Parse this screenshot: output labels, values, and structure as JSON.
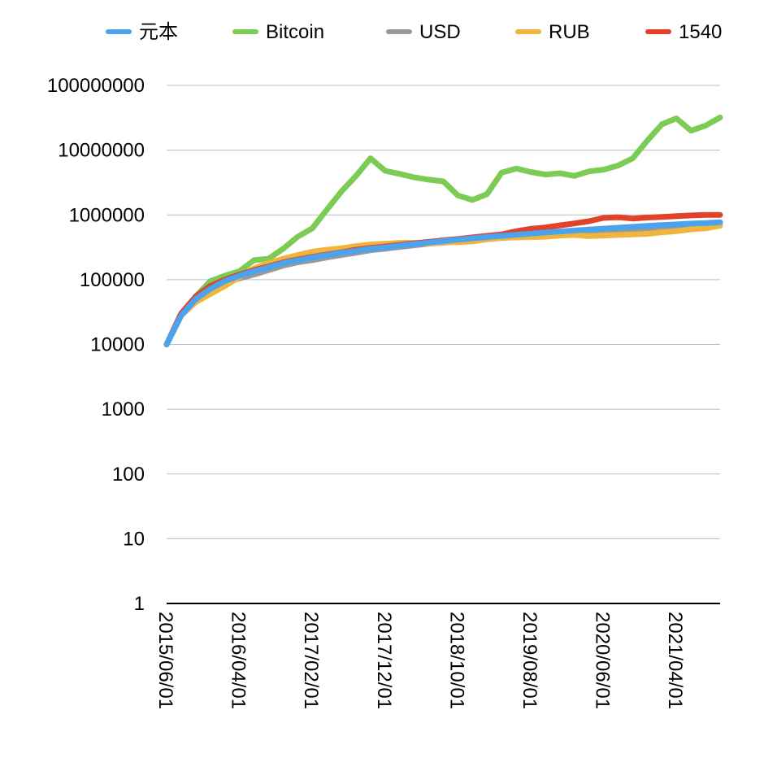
{
  "chart_data": {
    "type": "line",
    "y_scale": "log",
    "ylim": [
      1,
      100000000
    ],
    "y_ticks": [
      "1",
      "10",
      "100",
      "1000",
      "10000",
      "100000",
      "1000000",
      "10000000",
      "100000000"
    ],
    "x_tick_labels": [
      "2015/06/01",
      "2016/04/01",
      "2017/02/01",
      "2017/12/01",
      "2018/10/01",
      "2019/08/01",
      "2020/06/01",
      "2021/04/01"
    ],
    "grid": true,
    "legend_position": "top",
    "x": [
      "2015/06",
      "2015/08",
      "2015/10",
      "2015/12",
      "2016/02",
      "2016/04",
      "2016/06",
      "2016/08",
      "2016/10",
      "2016/12",
      "2017/02",
      "2017/04",
      "2017/06",
      "2017/08",
      "2017/10",
      "2017/12",
      "2018/02",
      "2018/04",
      "2018/06",
      "2018/08",
      "2018/10",
      "2018/12",
      "2019/02",
      "2019/04",
      "2019/06",
      "2019/08",
      "2019/10",
      "2019/12",
      "2020/02",
      "2020/04",
      "2020/06",
      "2020/08",
      "2020/10",
      "2020/12",
      "2021/02",
      "2021/04",
      "2021/06",
      "2021/08",
      "2021/10"
    ],
    "series": [
      {
        "name": "Bitcoin",
        "color": "#7ccb55",
        "values": [
          10000,
          28000,
          55000,
          95000,
          115000,
          135000,
          200000,
          210000,
          300000,
          460000,
          620000,
          1200000,
          2300000,
          4000000,
          7500000,
          4800000,
          4300000,
          3800000,
          3500000,
          3300000,
          2000000,
          1700000,
          2100000,
          4500000,
          5200000,
          4600000,
          4200000,
          4400000,
          4000000,
          4700000,
          5000000,
          5800000,
          7500000,
          14000000,
          25000000,
          31000000,
          20000000,
          24000000,
          32000000
        ]
      },
      {
        "name": "USD",
        "color": "#999999",
        "values": [
          10000,
          30000,
          50000,
          70000,
          90000,
          105000,
          120000,
          140000,
          165000,
          185000,
          200000,
          220000,
          240000,
          260000,
          285000,
          300000,
          320000,
          340000,
          360000,
          375000,
          390000,
          410000,
          430000,
          450000,
          470000,
          490000,
          500000,
          515000,
          530000,
          545000,
          560000,
          575000,
          595000,
          610000,
          630000,
          650000,
          670000,
          690000,
          710000
        ]
      },
      {
        "name": "RUB",
        "color": "#efb53c",
        "values": [
          10000,
          28000,
          45000,
          60000,
          80000,
          110000,
          150000,
          180000,
          210000,
          240000,
          270000,
          290000,
          305000,
          330000,
          350000,
          360000,
          370000,
          370000,
          360000,
          380000,
          380000,
          390000,
          420000,
          440000,
          450000,
          455000,
          460000,
          480000,
          490000,
          470000,
          480000,
          490000,
          500000,
          510000,
          540000,
          560000,
          600000,
          620000,
          680000
        ]
      },
      {
        "name": "1540",
        "color": "#e0432a",
        "values": [
          10000,
          30000,
          55000,
          80000,
          100000,
          120000,
          140000,
          160000,
          185000,
          205000,
          225000,
          245000,
          265000,
          290000,
          310000,
          325000,
          345000,
          365000,
          385000,
          405000,
          425000,
          450000,
          475000,
          500000,
          560000,
          610000,
          640000,
          690000,
          740000,
          800000,
          900000,
          920000,
          880000,
          910000,
          930000,
          960000,
          980000,
          1000000,
          1000000
        ]
      },
      {
        "name": "元本",
        "color": "#4ba3ee",
        "values": [
          10000,
          28000,
          50000,
          72000,
          95000,
          115000,
          135000,
          155000,
          180000,
          200000,
          220000,
          240000,
          260000,
          280000,
          300000,
          315000,
          335000,
          355000,
          375000,
          395000,
          415000,
          435000,
          455000,
          475000,
          495000,
          515000,
          535000,
          555000,
          575000,
          595000,
          615000,
          635000,
          655000,
          675000,
          695000,
          715000,
          735000,
          750000,
          770000
        ]
      }
    ],
    "legend": [
      {
        "name": "元本",
        "color": "#4ba3ee"
      },
      {
        "name": "Bitcoin",
        "color": "#7ccb55"
      },
      {
        "name": "USD",
        "color": "#999999"
      },
      {
        "name": "RUB",
        "color": "#efb53c"
      },
      {
        "name": "1540",
        "color": "#e0432a"
      }
    ]
  }
}
